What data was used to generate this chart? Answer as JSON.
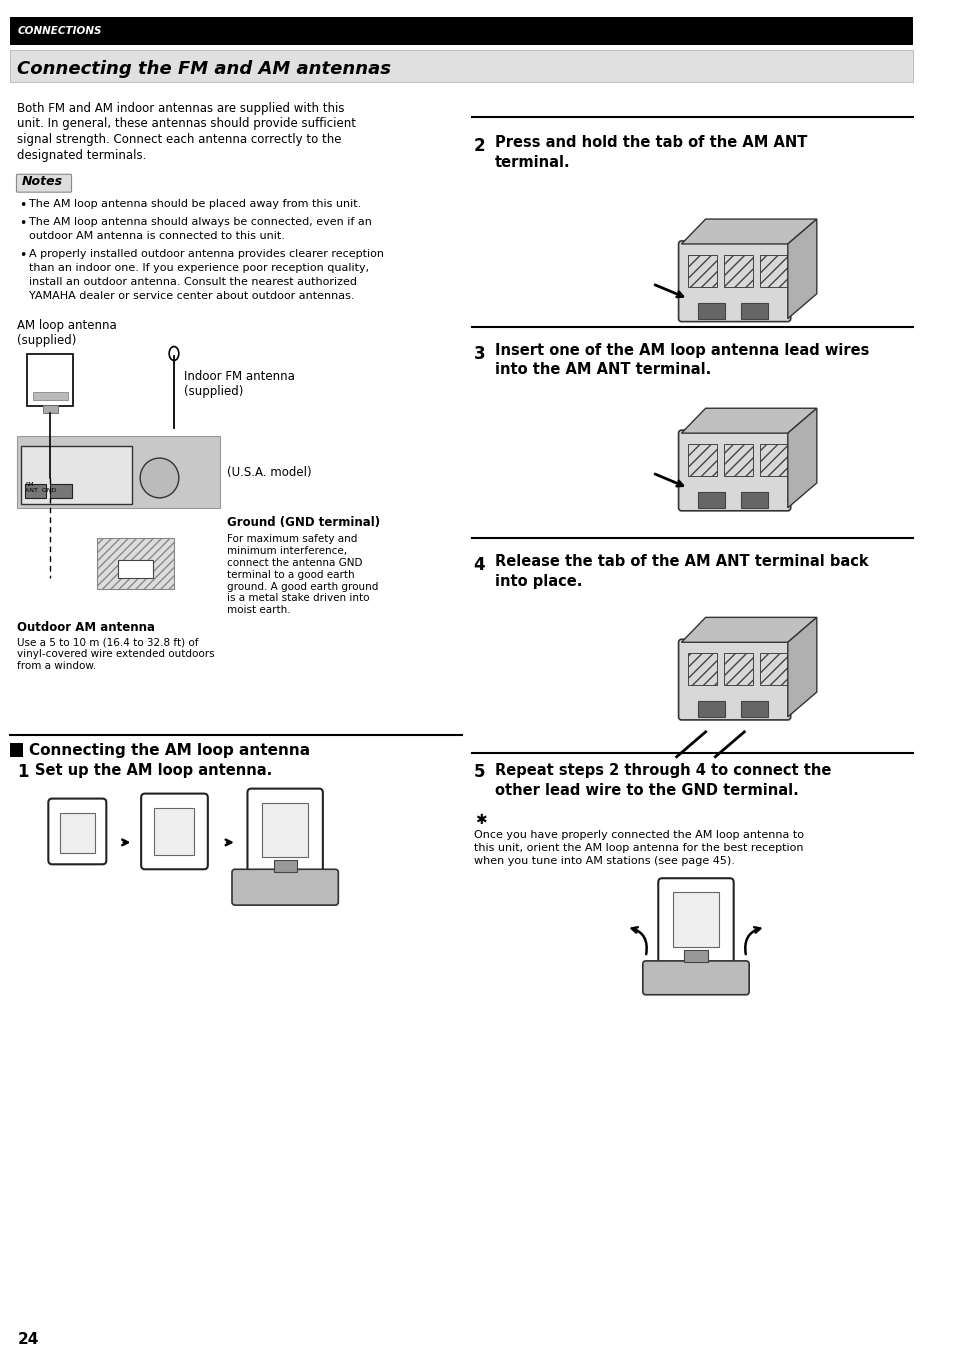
{
  "page_num": "24",
  "header_text": "CONNECTIONS",
  "title": "Connecting the FM and AM antennas",
  "bg_color": "#ffffff",
  "header_bg": "#000000",
  "header_fg": "#ffffff",
  "title_fg": "#000000",
  "intro_text": "Both FM and AM indoor antennas are supplied with this\nunit. In general, these antennas should provide sufficient\nsignal strength. Connect each antenna correctly to the\ndesignated terminals.",
  "notes_title": "Notes",
  "notes": [
    "The AM loop antenna should be placed away from this unit.",
    "The AM loop antenna should always be connected, even if an\noutdoor AM antenna is connected to this unit.",
    "A properly installed outdoor antenna provides clearer reception\nthan an indoor one. If you experience poor reception quality,\ninstall an outdoor antenna. Consult the nearest authorized\nYAMAHA dealer or service center about outdoor antennas."
  ],
  "am_loop_label": "AM loop antenna\n(supplied)",
  "fm_antenna_label": "Indoor FM antenna\n(supplied)",
  "usa_model_label": "(U.S.A. model)",
  "ground_label": "Ground (GND terminal)",
  "ground_desc": "For maximum safety and\nminimum interference,\nconnect the antenna GND\nterminal to a good earth\nground. A good earth ground\nis a metal stake driven into\nmoist earth.",
  "outdoor_label": "Outdoor AM antenna",
  "outdoor_desc": "Use a 5 to 10 m (16.4 to 32.8 ft) of\nvinyl-covered wire extended outdoors\nfrom a window.",
  "section_title": "Connecting the AM loop antenna",
  "step1_title": "Set up the AM loop antenna.",
  "step2_title": "Press and hold the tab of the AM ANT\nterminal.",
  "step3_title": "Insert one of the AM loop antenna lead wires\ninto the AM ANT terminal.",
  "step4_title": "Release the tab of the AM ANT terminal back\ninto place.",
  "step5_title": "Repeat steps 2 through 4 to connect the\nother lead wire to the GND terminal.",
  "step5_note": "Once you have properly connected the AM loop antenna to\nthis unit, orient the AM loop antenna for the best reception\nwhen you tune into AM stations (see page 45)."
}
